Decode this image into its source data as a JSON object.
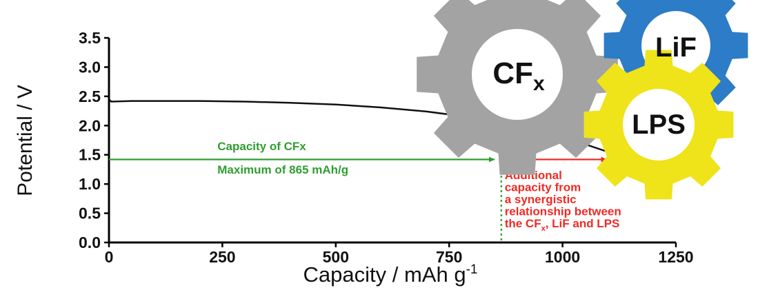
{
  "chart_data": {
    "type": "line",
    "title": "",
    "xlabel": "Capacity / mAh g",
    "xlabel_superscript": "-1",
    "ylabel": "Potential / V",
    "xlim": [
      0,
      1250
    ],
    "ylim": [
      0,
      3.5
    ],
    "x_ticks": [
      0,
      250,
      500,
      750,
      1000,
      1250
    ],
    "x_tick_labels": [
      "0",
      "250",
      "500",
      "750",
      "1000",
      "1250"
    ],
    "y_ticks": [
      0,
      0.5,
      1.0,
      1.5,
      2.0,
      2.5,
      3.0,
      3.5
    ],
    "y_tick_labels": [
      "0.0",
      "0.5",
      "1.0",
      "1.5",
      "2.0",
      "2.5",
      "3.0",
      "3.5"
    ],
    "grid": false,
    "series": [
      {
        "color": "#111111",
        "x": [
          0,
          5,
          50,
          100,
          200,
          300,
          400,
          500,
          600,
          700,
          800,
          900,
          1000,
          1050,
          1100
        ],
        "y": [
          2.45,
          2.41,
          2.42,
          2.42,
          2.42,
          2.41,
          2.39,
          2.36,
          2.31,
          2.24,
          2.14,
          1.99,
          1.8,
          1.68,
          1.55
        ]
      }
    ],
    "reference_lines": [
      {
        "orientation": "vertical",
        "x": 865,
        "color": "#3aa83a",
        "style": "dotted"
      }
    ],
    "arrows": [
      {
        "from_x": 0,
        "to_x": 865,
        "y": 1.42,
        "color": "#2f9e2f"
      },
      {
        "from_x": 865,
        "to_x": 1100,
        "y": 1.42,
        "color": "#ee2a24"
      }
    ],
    "annotations": [
      {
        "text": "Capacity of CFx",
        "x": 300,
        "y": 1.65,
        "color": "#2f9e2f"
      },
      {
        "text": "Maximum of 865 mAh/g",
        "x": 300,
        "y": 1.25,
        "color": "#2f9e2f"
      },
      {
        "lines": [
          "Additional",
          "capacity from",
          "a synergistic",
          "relationship between",
          "the CF, LiF and LPS"
        ],
        "subscript_note": "x",
        "x": 880,
        "y": 1.25,
        "color": "#ee2a24"
      }
    ]
  },
  "gears": [
    {
      "label": "CF",
      "subscript": "x",
      "color": "#a3a3a3"
    },
    {
      "label": "LiF",
      "color": "#2c7cc7"
    },
    {
      "label": "LPS",
      "color": "#efe31a"
    }
  ]
}
